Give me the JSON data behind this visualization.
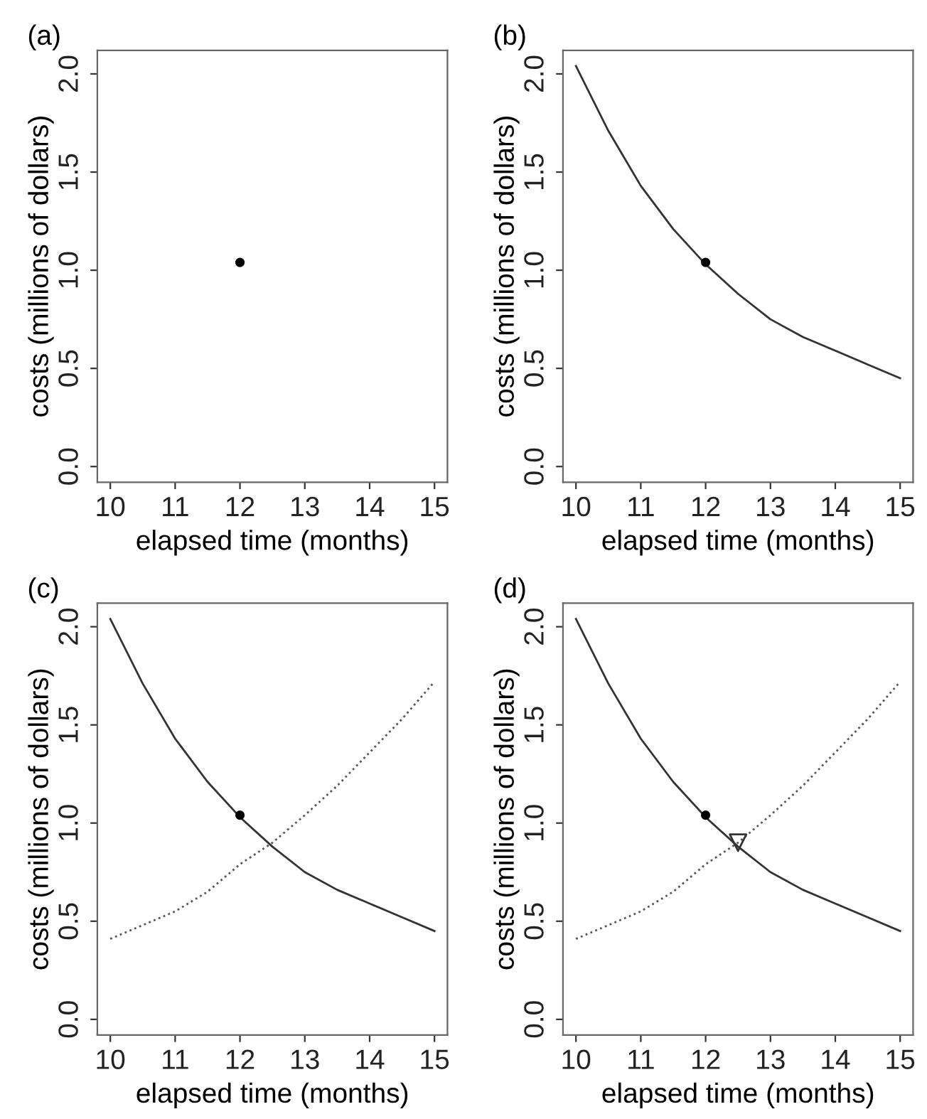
{
  "chart_data": [
    {
      "type": "scatter",
      "title": "(a)",
      "xlabel": "elapsed time (months)",
      "ylabel": "costs (millions of dollars)",
      "xlim": [
        9.8,
        15.2
      ],
      "ylim": [
        -0.08,
        2.12
      ],
      "xticks": [
        10,
        11,
        12,
        13,
        14,
        15
      ],
      "yticks": [
        {
          "value": 0,
          "label": "0.0"
        },
        {
          "value": 0.5,
          "label": "0.5"
        },
        {
          "value": 1,
          "label": "1.0"
        },
        {
          "value": 1.5,
          "label": "1.5"
        },
        {
          "value": 2,
          "label": "2.0"
        }
      ],
      "grid": false,
      "legend": false,
      "series": [
        {
          "color": "#000000",
          "marker": "circle",
          "x": [
            12
          ],
          "values": [
            1.04
          ]
        }
      ]
    },
    {
      "type": "line",
      "title": "(b)",
      "xlabel": "elapsed time (months)",
      "ylabel": "costs (millions of dollars)",
      "xlim": [
        9.8,
        15.2
      ],
      "ylim": [
        -0.08,
        2.12
      ],
      "xticks": [
        10,
        11,
        12,
        13,
        14,
        15
      ],
      "yticks": [
        {
          "value": 0,
          "label": "0.0"
        },
        {
          "value": 0.5,
          "label": "0.5"
        },
        {
          "value": 1,
          "label": "1.0"
        },
        {
          "value": 1.5,
          "label": "1.5"
        },
        {
          "value": 2,
          "label": "2.0"
        }
      ],
      "grid": false,
      "legend": false,
      "series": [
        {
          "color": "#333333",
          "line_style": "solid",
          "marker": "none",
          "x": [
            10,
            10.5,
            11,
            11.5,
            12,
            12.5,
            13,
            13.5,
            14,
            14.5,
            15
          ],
          "values": [
            2.04,
            1.71,
            1.43,
            1.21,
            1.03,
            0.88,
            0.75,
            0.66,
            0.59,
            0.52,
            0.45
          ]
        },
        {
          "type": "scatter",
          "color": "#000000",
          "marker": "circle",
          "x": [
            12
          ],
          "values": [
            1.04
          ]
        }
      ]
    },
    {
      "type": "line",
      "title": "(c)",
      "xlabel": "elapsed time (months)",
      "ylabel": "costs (millions of dollars)",
      "xlim": [
        9.8,
        15.2
      ],
      "ylim": [
        -0.08,
        2.12
      ],
      "xticks": [
        10,
        11,
        12,
        13,
        14,
        15
      ],
      "yticks": [
        {
          "value": 0,
          "label": "0.0"
        },
        {
          "value": 0.5,
          "label": "0.5"
        },
        {
          "value": 1,
          "label": "1.0"
        },
        {
          "value": 1.5,
          "label": "1.5"
        },
        {
          "value": 2,
          "label": "2.0"
        }
      ],
      "grid": false,
      "legend": false,
      "series": [
        {
          "color": "#333333",
          "line_style": "solid",
          "marker": "none",
          "x": [
            10,
            10.5,
            11,
            11.5,
            12,
            12.5,
            13,
            13.5,
            14,
            14.5,
            15
          ],
          "values": [
            2.04,
            1.71,
            1.43,
            1.21,
            1.03,
            0.88,
            0.75,
            0.66,
            0.59,
            0.52,
            0.45
          ]
        },
        {
          "color": "#555555",
          "line_style": "dotted",
          "marker": "none",
          "x": [
            10,
            10.5,
            11,
            11.5,
            12,
            12.5,
            13,
            13.5,
            14,
            14.5,
            15
          ],
          "values": [
            0.41,
            0.48,
            0.55,
            0.65,
            0.79,
            0.9,
            1.04,
            1.19,
            1.36,
            1.53,
            1.72
          ]
        },
        {
          "type": "scatter",
          "color": "#000000",
          "marker": "circle",
          "x": [
            12
          ],
          "values": [
            1.04
          ]
        }
      ]
    },
    {
      "type": "line",
      "title": "(d)",
      "xlabel": "elapsed time (months)",
      "ylabel": "costs (millions of dollars)",
      "xlim": [
        9.8,
        15.2
      ],
      "ylim": [
        -0.08,
        2.12
      ],
      "xticks": [
        10,
        11,
        12,
        13,
        14,
        15
      ],
      "yticks": [
        {
          "value": 0,
          "label": "0.0"
        },
        {
          "value": 0.5,
          "label": "0.5"
        },
        {
          "value": 1,
          "label": "1.0"
        },
        {
          "value": 1.5,
          "label": "1.5"
        },
        {
          "value": 2,
          "label": "2.0"
        }
      ],
      "grid": false,
      "legend": false,
      "series": [
        {
          "color": "#333333",
          "line_style": "solid",
          "marker": "none",
          "x": [
            10,
            10.5,
            11,
            11.5,
            12,
            12.5,
            13,
            13.5,
            14,
            14.5,
            15
          ],
          "values": [
            2.04,
            1.71,
            1.43,
            1.21,
            1.03,
            0.88,
            0.75,
            0.66,
            0.59,
            0.52,
            0.45
          ]
        },
        {
          "color": "#555555",
          "line_style": "dotted",
          "marker": "none",
          "x": [
            10,
            10.5,
            11,
            11.5,
            12,
            12.5,
            13,
            13.5,
            14,
            14.5,
            15
          ],
          "values": [
            0.41,
            0.48,
            0.55,
            0.65,
            0.79,
            0.9,
            1.04,
            1.19,
            1.36,
            1.53,
            1.72
          ]
        },
        {
          "type": "scatter",
          "color": "#000000",
          "marker": "circle",
          "x": [
            12
          ],
          "values": [
            1.04
          ]
        },
        {
          "type": "scatter",
          "color": "#333333",
          "marker": "triangle",
          "x": [
            12.5
          ],
          "values": [
            0.9
          ]
        }
      ]
    }
  ]
}
